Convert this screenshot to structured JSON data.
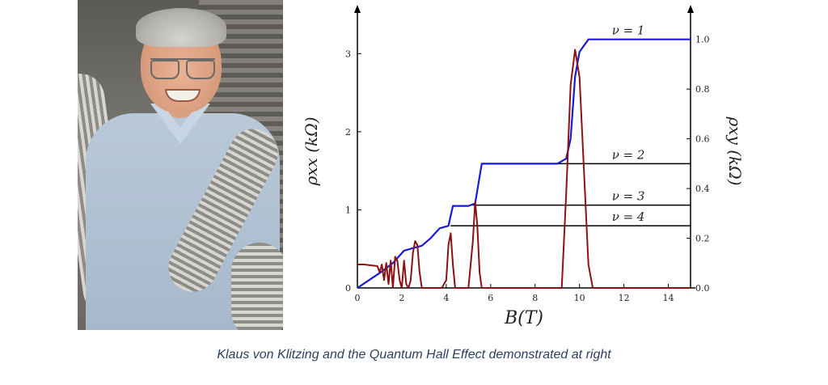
{
  "photo": {
    "subject": "Klaus von Klitzing portrait"
  },
  "caption": "Klaus von Klitzing and the Quantum Hall Effect demonstrated at right",
  "chart_data": {
    "type": "line",
    "xlabel": "B(T)",
    "ylabel_left": "ρxx (kΩ)",
    "ylabel_right": "ρxy (kΩ)",
    "xlim": [
      0,
      15
    ],
    "ylim_left": [
      0,
      3.5
    ],
    "ylim_right": [
      0,
      1.1
    ],
    "x_ticks": [
      0,
      2,
      4,
      6,
      8,
      10,
      12,
      14
    ],
    "y_ticks_left": [
      0,
      1,
      2,
      3
    ],
    "y_ticks_right": [
      "0.0",
      "0.2",
      "0.4",
      "0.6",
      "0.8",
      "1.0"
    ],
    "colors": {
      "rho_xy": "#1a1ad6",
      "rho_xx": "#8b1212",
      "plateau": "#000000"
    },
    "series": [
      {
        "key": "rho_xy",
        "axis": "right",
        "x": [
          0,
          0.5,
          1.0,
          1.3,
          1.6,
          1.8,
          2.1,
          2.5,
          2.9,
          3.3,
          3.7,
          4.1,
          4.3,
          5.0,
          5.3,
          5.6,
          7.0,
          9.0,
          9.4,
          9.6,
          9.8,
          10.0,
          10.4,
          11.0,
          13.0,
          15.0
        ],
        "y": [
          0,
          0.03,
          0.06,
          0.08,
          0.1,
          0.12,
          0.15,
          0.16,
          0.17,
          0.2,
          0.24,
          0.25,
          0.33,
          0.33,
          0.34,
          0.5,
          0.5,
          0.5,
          0.52,
          0.6,
          0.85,
          0.95,
          1.0,
          1.0,
          1.0,
          1.0
        ]
      },
      {
        "key": "rho_xx",
        "axis": "left",
        "x": [
          0,
          0.3,
          0.6,
          0.9,
          1.0,
          1.1,
          1.2,
          1.3,
          1.4,
          1.5,
          1.6,
          1.7,
          1.8,
          1.9,
          2.0,
          2.1,
          2.2,
          2.3,
          2.4,
          2.5,
          2.6,
          2.7,
          2.8,
          2.9,
          3.0,
          3.1,
          3.4,
          3.8,
          4.0,
          4.1,
          4.2,
          4.3,
          4.4,
          4.6,
          5.0,
          5.2,
          5.3,
          5.4,
          5.5,
          5.6,
          5.8,
          6.0,
          8.0,
          9.2,
          9.4,
          9.6,
          9.8,
          10.0,
          10.2,
          10.4,
          10.6,
          11.0,
          15.0
        ],
        "y": [
          0.3,
          0.3,
          0.29,
          0.28,
          0.2,
          0.3,
          0.1,
          0.32,
          0.05,
          0.35,
          0.0,
          0.4,
          0.35,
          0.1,
          0.0,
          0.35,
          0.05,
          0.0,
          0.1,
          0.45,
          0.6,
          0.55,
          0.2,
          0.0,
          0.0,
          0.0,
          0.0,
          0.0,
          0.1,
          0.55,
          0.7,
          0.3,
          0.0,
          0.0,
          0.0,
          0.6,
          1.1,
          0.8,
          0.2,
          0.0,
          0.0,
          0.0,
          0.0,
          0.0,
          1.2,
          2.6,
          3.05,
          2.7,
          1.5,
          0.3,
          0.0,
          0.0,
          0.0
        ]
      }
    ],
    "plateaus": [
      {
        "label": "ν = 1",
        "value": 1.0,
        "x_start": 11.0,
        "x_end": 15.0
      },
      {
        "label": "ν = 2",
        "value": 0.5,
        "x_start": 9.0,
        "x_end": 15.0
      },
      {
        "label": "ν = 3",
        "value": 0.333,
        "x_start": 5.2,
        "x_end": 15.0
      },
      {
        "label": "ν = 4",
        "value": 0.25,
        "x_start": 4.2,
        "x_end": 15.0
      }
    ]
  }
}
